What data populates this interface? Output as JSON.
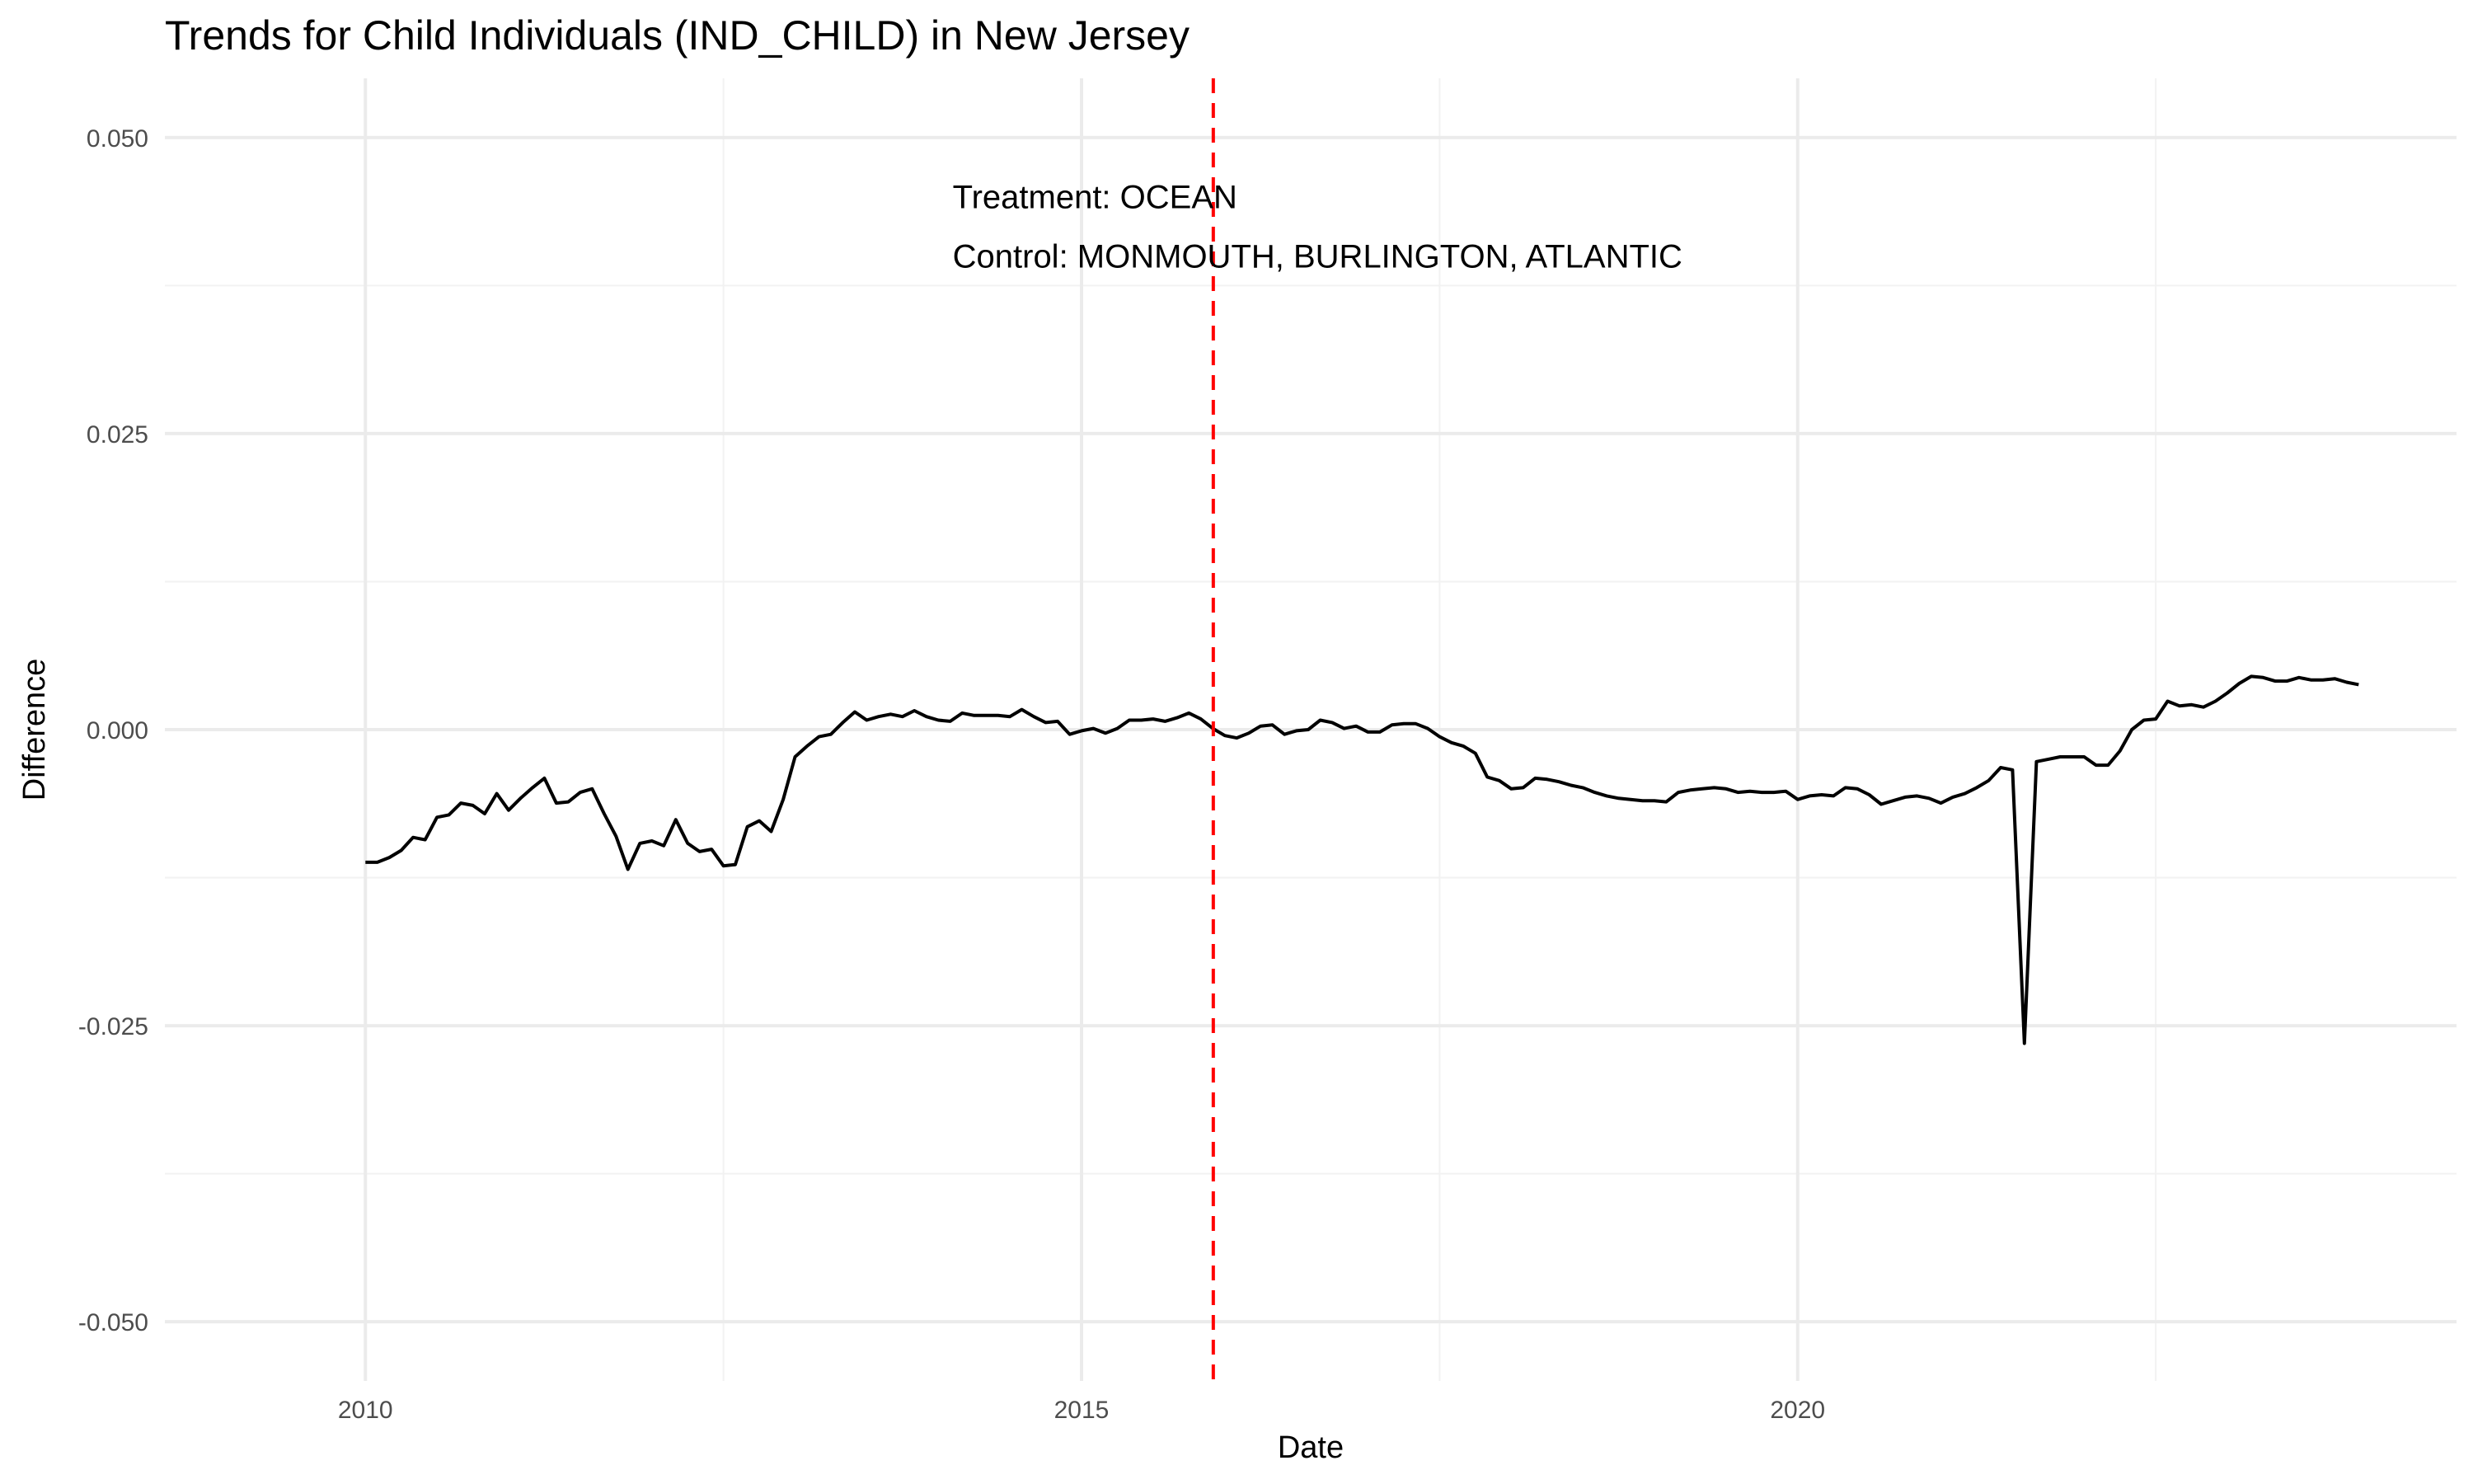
{
  "chart_data": {
    "type": "line",
    "title": "Trends for Child Individuals (IND_CHILD) in New Jersey",
    "xlabel": "Date",
    "ylabel": "Difference",
    "xlim": [
      2008.6,
      2024.6
    ],
    "ylim": [
      -0.055,
      0.055
    ],
    "x_ticks": [
      2010,
      2015,
      2020
    ],
    "x_tick_labels": [
      "2010",
      "2015",
      "2020"
    ],
    "y_ticks": [
      -0.05,
      -0.025,
      0.0,
      0.025,
      0.05
    ],
    "y_tick_labels": [
      "-0.050",
      "-0.025",
      "0.000",
      "0.025",
      "0.050"
    ],
    "grid": true,
    "vline": {
      "x": 2015.92,
      "color": "#ff0000",
      "style": "dashed"
    },
    "annotations": [
      {
        "text": "Treatment: OCEAN",
        "x": 2014.1,
        "y": 0.045
      },
      {
        "text": "Control: MONMOUTH, BURLINGTON, ATLANTIC",
        "x": 2014.1,
        "y": 0.04
      }
    ],
    "series": [
      {
        "color": "#000000",
        "x": [
          2010.0,
          2010.083,
          2010.167,
          2010.25,
          2010.333,
          2010.417,
          2010.5,
          2010.583,
          2010.667,
          2010.75,
          2010.833,
          2010.917,
          2011.0,
          2011.083,
          2011.167,
          2011.25,
          2011.333,
          2011.417,
          2011.5,
          2011.583,
          2011.667,
          2011.75,
          2011.833,
          2011.917,
          2012.0,
          2012.083,
          2012.167,
          2012.25,
          2012.333,
          2012.417,
          2012.5,
          2012.583,
          2012.667,
          2012.75,
          2012.833,
          2012.917,
          2013.0,
          2013.083,
          2013.167,
          2013.25,
          2013.333,
          2013.417,
          2013.5,
          2013.583,
          2013.667,
          2013.75,
          2013.833,
          2013.917,
          2014.0,
          2014.083,
          2014.167,
          2014.25,
          2014.333,
          2014.417,
          2014.5,
          2014.583,
          2014.667,
          2014.75,
          2014.833,
          2014.917,
          2015.0,
          2015.083,
          2015.167,
          2015.25,
          2015.333,
          2015.417,
          2015.5,
          2015.583,
          2015.667,
          2015.75,
          2015.833,
          2015.917,
          2016.0,
          2016.083,
          2016.167,
          2016.25,
          2016.333,
          2016.417,
          2016.5,
          2016.583,
          2016.667,
          2016.75,
          2016.833,
          2016.917,
          2017.0,
          2017.083,
          2017.167,
          2017.25,
          2017.333,
          2017.417,
          2017.5,
          2017.583,
          2017.667,
          2017.75,
          2017.833,
          2017.917,
          2018.0,
          2018.083,
          2018.167,
          2018.25,
          2018.333,
          2018.417,
          2018.5,
          2018.583,
          2018.667,
          2018.75,
          2018.833,
          2018.917,
          2019.0,
          2019.083,
          2019.167,
          2019.25,
          2019.333,
          2019.417,
          2019.5,
          2019.583,
          2019.667,
          2019.75,
          2019.833,
          2019.917,
          2020.0,
          2020.083,
          2020.167,
          2020.25,
          2020.333,
          2020.417,
          2020.5,
          2020.583,
          2020.667,
          2020.75,
          2020.833,
          2020.917,
          2021.0,
          2021.083,
          2021.167,
          2021.25,
          2021.333,
          2021.417,
          2021.5,
          2021.583,
          2021.667,
          2021.75,
          2021.833,
          2021.917,
          2022.0,
          2022.083,
          2022.167,
          2022.25,
          2022.333,
          2022.417,
          2022.5,
          2022.583,
          2022.667,
          2022.75,
          2022.833,
          2022.917,
          2023.0,
          2023.083,
          2023.167,
          2023.25,
          2023.333,
          2023.417,
          2023.5,
          2023.583,
          2023.667,
          2023.75,
          2023.833,
          2023.917
        ],
        "y": [
          -0.0112,
          -0.0112,
          -0.0108,
          -0.0102,
          -0.0091,
          -0.0093,
          -0.0074,
          -0.0072,
          -0.0062,
          -0.0064,
          -0.0071,
          -0.0054,
          -0.0068,
          -0.0058,
          -0.0049,
          -0.0041,
          -0.0062,
          -0.0061,
          -0.0053,
          -0.005,
          -0.0071,
          -0.009,
          -0.0118,
          -0.0096,
          -0.0094,
          -0.0098,
          -0.0076,
          -0.0096,
          -0.0103,
          -0.0101,
          -0.0115,
          -0.0114,
          -0.0082,
          -0.0077,
          -0.0086,
          -0.0059,
          -0.0023,
          -0.0014,
          -0.0006,
          -0.0004,
          0.0006,
          0.0015,
          0.0008,
          0.0011,
          0.0013,
          0.0011,
          0.0016,
          0.0011,
          0.0008,
          0.0007,
          0.0014,
          0.0012,
          0.0012,
          0.0012,
          0.0011,
          0.0017,
          0.0011,
          0.0006,
          0.0007,
          -0.0004,
          -0.0001,
          0.0001,
          -0.0003,
          0.0001,
          0.0008,
          0.0008,
          0.0009,
          0.0007,
          0.001,
          0.0014,
          0.0009,
          0.0001,
          -0.0005,
          -0.0007,
          -0.0003,
          0.0003,
          0.0004,
          -0.0004,
          -0.0001,
          0.0,
          0.0008,
          0.0006,
          0.0001,
          0.0003,
          -0.0002,
          -0.0002,
          0.0004,
          0.0005,
          0.0005,
          0.0001,
          -0.0006,
          -0.0011,
          -0.0014,
          -0.002,
          -0.004,
          -0.0043,
          -0.005,
          -0.0049,
          -0.0041,
          -0.0042,
          -0.0044,
          -0.0047,
          -0.0049,
          -0.0053,
          -0.0056,
          -0.0058,
          -0.0059,
          -0.006,
          -0.006,
          -0.0061,
          -0.0053,
          -0.0051,
          -0.005,
          -0.0049,
          -0.005,
          -0.0053,
          -0.0052,
          -0.0053,
          -0.0053,
          -0.0052,
          -0.0059,
          -0.0056,
          -0.0055,
          -0.0056,
          -0.0049,
          -0.005,
          -0.0055,
          -0.0063,
          -0.006,
          -0.0057,
          -0.0056,
          -0.0058,
          -0.0062,
          -0.0057,
          -0.0054,
          -0.0049,
          -0.0043,
          -0.0032,
          -0.0034,
          -0.0265,
          -0.0027,
          -0.0025,
          -0.0023,
          -0.0023,
          -0.0023,
          -0.003,
          -0.003,
          -0.0018,
          0.0,
          0.0008,
          0.0009,
          0.0024,
          0.002,
          0.0021,
          0.0019,
          0.0024,
          0.0031,
          0.0039,
          0.0045,
          0.0044,
          0.0041,
          0.0041,
          0.0044,
          0.0042,
          0.0042,
          0.0043,
          0.004,
          0.0038
        ]
      }
    ]
  }
}
